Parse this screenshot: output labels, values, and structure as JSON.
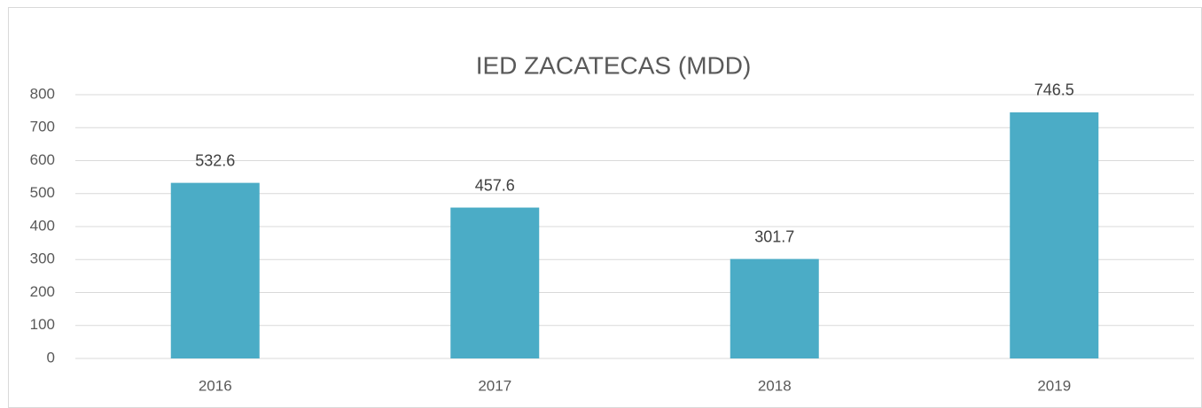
{
  "chart_data": {
    "type": "bar",
    "title": "IED ZACATECAS (MDD)",
    "categories": [
      "2016",
      "2017",
      "2018",
      "2019"
    ],
    "values": [
      532.6,
      457.6,
      301.7,
      746.5
    ],
    "color": "#4bacc6",
    "ylim": [
      0,
      800
    ],
    "yticks": [
      0,
      100,
      200,
      300,
      400,
      500,
      600,
      700,
      800
    ],
    "grid": true,
    "data_labels": true
  }
}
